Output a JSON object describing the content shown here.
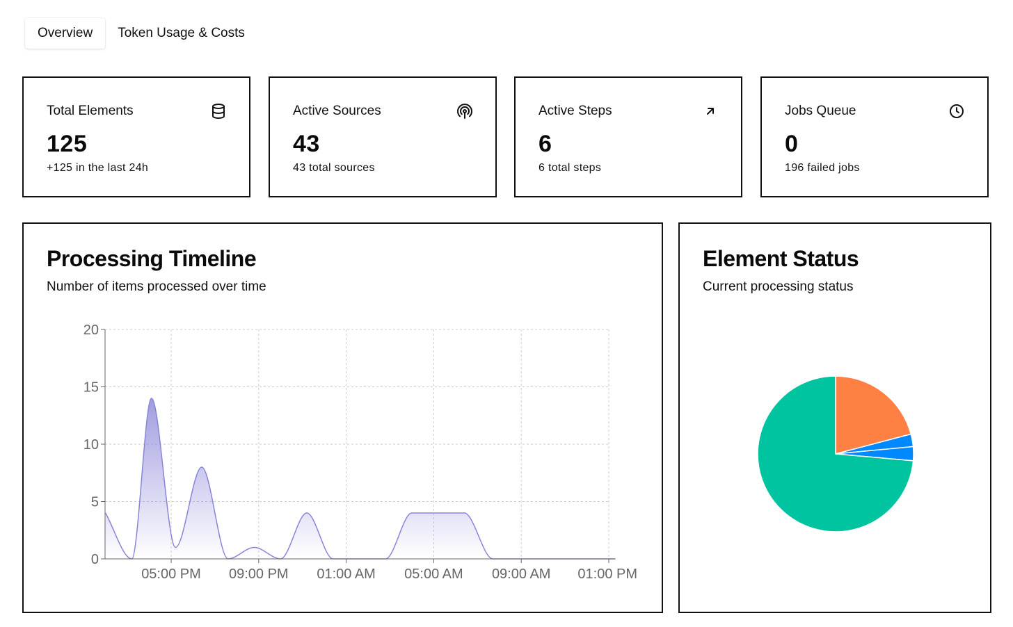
{
  "tabs": [
    {
      "label": "Overview",
      "active": true
    },
    {
      "label": "Token Usage & Costs",
      "active": false
    }
  ],
  "stats": [
    {
      "title": "Total Elements",
      "value": "125",
      "sub": "+125 in the last 24h",
      "icon": "database-icon"
    },
    {
      "title": "Active Sources",
      "value": "43",
      "sub": "43 total sources",
      "icon": "broadcast-icon"
    },
    {
      "title": "Active Steps",
      "value": "6",
      "sub": "6 total steps",
      "icon": "arrow-up-right-icon"
    },
    {
      "title": "Jobs Queue",
      "value": "0",
      "sub": "196 failed jobs",
      "icon": "clock-icon"
    }
  ],
  "timeline": {
    "title": "Processing Timeline",
    "subtitle": "Number of items processed over time"
  },
  "status": {
    "title": "Element Status",
    "subtitle": "Current processing status"
  },
  "chart_data": [
    {
      "type": "area",
      "x_ticks": [
        "05:00 PM",
        "09:00 PM",
        "01:00 AM",
        "05:00 AM",
        "09:00 AM",
        "01:00 PM"
      ],
      "y_ticks": [
        0,
        5,
        10,
        15,
        20
      ],
      "ylim": [
        0,
        20
      ],
      "grid": true,
      "color": "#8884d8",
      "points": [
        {
          "hour": 14.0,
          "value": 4
        },
        {
          "hour": 15.2,
          "value": 0
        },
        {
          "hour": 16.1,
          "value": 14
        },
        {
          "hour": 17.2,
          "value": 1
        },
        {
          "hour": 18.4,
          "value": 8
        },
        {
          "hour": 19.6,
          "value": 0
        },
        {
          "hour": 20.8,
          "value": 1
        },
        {
          "hour": 22.0,
          "value": 0
        },
        {
          "hour": 23.2,
          "value": 4
        },
        {
          "hour": 24.4,
          "value": 0
        },
        {
          "hour": 26.8,
          "value": 0
        },
        {
          "hour": 28.0,
          "value": 4
        },
        {
          "hour": 30.4,
          "value": 4
        },
        {
          "hour": 31.7,
          "value": 0
        },
        {
          "hour": 37.3,
          "value": 0
        }
      ]
    },
    {
      "type": "pie",
      "slices": [
        {
          "value": 20.9,
          "color": "#ff8042"
        },
        {
          "value": 2.6,
          "color": "#0088fe"
        },
        {
          "value": 2.9,
          "color": "#0088fe"
        },
        {
          "value": 73.6,
          "color": "#00c49f"
        }
      ]
    }
  ]
}
